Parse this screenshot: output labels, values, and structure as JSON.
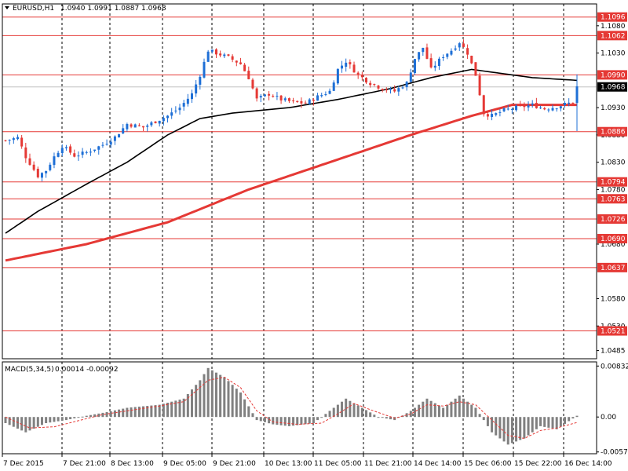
{
  "header": {
    "symbol": "EURUSD,H1",
    "ohlc": "1.0940 1.0991 1.0887 1.0968"
  },
  "macd_header": {
    "label": "MACD(5,34,5)",
    "values": "0.00014 -0.00092"
  },
  "colors": {
    "candle_up": "#1e6fd6",
    "candle_down": "#e53935",
    "level_line": "#e53935",
    "ma_fast": "#000000",
    "ma_slow": "#e53935",
    "histogram": "#808080",
    "signal": "#e53935",
    "current_price_bg": "#000000"
  },
  "chart_data": [
    {
      "type": "candlestick",
      "symbol": "EURUSD",
      "timeframe": "H1",
      "ylim": [
        1.047,
        1.112
      ],
      "y_ticks": [
        "1.1080",
        "1.1030",
        "1.0930",
        "1.0880",
        "1.0830",
        "1.0780",
        "1.0680",
        "1.0580",
        "1.0530",
        "1.0485"
      ],
      "x_ticks": [
        "7 Dec 2015",
        "7 Dec 21:00",
        "8 Dec 13:00",
        "9 Dec 05:00",
        "9 Dec 21:00",
        "10 Dec 13:00",
        "11 Dec 05:00",
        "11 Dec 21:00",
        "14 Dec 14:00",
        "15 Dec 06:00",
        "15 Dec 22:00",
        "16 Dec 14:00"
      ],
      "levels": [
        "1.1096",
        "1.1062",
        "1.0990",
        "1.0886",
        "1.0794",
        "1.0763",
        "1.0726",
        "1.0690",
        "1.0637",
        "1.0521"
      ],
      "current_price": "1.0968",
      "close_path": [
        [
          0,
          1.087
        ],
        [
          3,
          1.0875
        ],
        [
          5,
          1.084
        ],
        [
          8,
          1.0805
        ],
        [
          10,
          1.0815
        ],
        [
          12,
          1.084
        ],
        [
          14,
          1.086
        ],
        [
          17,
          1.0842
        ],
        [
          20,
          1.0848
        ],
        [
          24,
          1.0862
        ],
        [
          27,
          1.0876
        ],
        [
          30,
          1.09
        ],
        [
          34,
          1.0894
        ],
        [
          37,
          1.0905
        ],
        [
          40,
          1.0915
        ],
        [
          43,
          1.093
        ],
        [
          46,
          1.0955
        ],
        [
          48,
          1.099
        ],
        [
          50,
          1.1035
        ],
        [
          52,
          1.103
        ],
        [
          55,
          1.1022
        ],
        [
          58,
          1.101
        ],
        [
          60,
          1.0985
        ],
        [
          62,
          1.0945
        ],
        [
          65,
          1.0955
        ],
        [
          68,
          1.0945
        ],
        [
          71,
          1.094
        ],
        [
          74,
          1.0938
        ],
        [
          77,
          1.095
        ],
        [
          80,
          1.096
        ],
        [
          82,
          1.1
        ],
        [
          84,
          1.1015
        ],
        [
          87,
          1.099
        ],
        [
          90,
          1.0975
        ],
        [
          93,
          1.0965
        ],
        [
          96,
          1.096
        ],
        [
          99,
          1.0975
        ],
        [
          101,
          1.102
        ],
        [
          103,
          1.104
        ],
        [
          105,
          1.1
        ],
        [
          108,
          1.1025
        ],
        [
          110,
          1.1035
        ],
        [
          112,
          1.105
        ],
        [
          114,
          1.103
        ],
        [
          116,
          1.099
        ],
        [
          118,
          1.092
        ],
        [
          120,
          1.0915
        ],
        [
          123,
          1.0925
        ],
        [
          126,
          1.093
        ],
        [
          130,
          1.0935
        ],
        [
          133,
          1.0928
        ],
        [
          136,
          1.0932
        ],
        [
          140,
          1.094
        ],
        [
          141,
          1.0968
        ]
      ],
      "ma_fast_path": [
        [
          0,
          1.07
        ],
        [
          8,
          1.074
        ],
        [
          20,
          1.079
        ],
        [
          30,
          1.083
        ],
        [
          40,
          1.088
        ],
        [
          48,
          1.091
        ],
        [
          56,
          1.092
        ],
        [
          70,
          1.093
        ],
        [
          82,
          1.0945
        ],
        [
          95,
          1.0965
        ],
        [
          105,
          1.0985
        ],
        [
          115,
          1.1
        ],
        [
          120,
          1.0995
        ],
        [
          130,
          1.0985
        ],
        [
          141,
          1.098
        ]
      ],
      "ma_slow_path": [
        [
          0,
          1.065
        ],
        [
          20,
          1.068
        ],
        [
          40,
          1.072
        ],
        [
          60,
          1.078
        ],
        [
          80,
          1.083
        ],
        [
          100,
          1.088
        ],
        [
          115,
          1.0915
        ],
        [
          125,
          1.0935
        ],
        [
          141,
          1.0935
        ]
      ]
    },
    {
      "type": "bar",
      "indicator": "MACD(5,34,5)",
      "ylim": [
        -0.006,
        0.009
      ],
      "y_ticks": [
        "0.00832",
        "0.00",
        "-0.00571"
      ],
      "histogram_path": [
        [
          0,
          -0.001
        ],
        [
          5,
          -0.0025
        ],
        [
          10,
          -0.001
        ],
        [
          15,
          -0.0005
        ],
        [
          20,
          0.0002
        ],
        [
          25,
          0.0008
        ],
        [
          30,
          0.0015
        ],
        [
          38,
          0.002
        ],
        [
          44,
          0.003
        ],
        [
          48,
          0.006
        ],
        [
          50,
          0.008
        ],
        [
          54,
          0.0065
        ],
        [
          58,
          0.004
        ],
        [
          62,
          -0.0005
        ],
        [
          66,
          -0.0012
        ],
        [
          70,
          -0.0015
        ],
        [
          76,
          -0.001
        ],
        [
          80,
          0.001
        ],
        [
          84,
          0.003
        ],
        [
          88,
          0.0015
        ],
        [
          92,
          0.0
        ],
        [
          96,
          -0.0005
        ],
        [
          100,
          0.001
        ],
        [
          104,
          0.003
        ],
        [
          108,
          0.0015
        ],
        [
          112,
          0.0035
        ],
        [
          116,
          0.0015
        ],
        [
          120,
          -0.0025
        ],
        [
          124,
          -0.0045
        ],
        [
          128,
          -0.0035
        ],
        [
          132,
          -0.0015
        ],
        [
          136,
          -0.002
        ],
        [
          141,
          0.0002
        ]
      ],
      "signal_path": [
        [
          0,
          0.0
        ],
        [
          6,
          -0.0018
        ],
        [
          12,
          -0.0016
        ],
        [
          18,
          -0.0006
        ],
        [
          24,
          0.0004
        ],
        [
          30,
          0.001
        ],
        [
          38,
          0.0018
        ],
        [
          44,
          0.0025
        ],
        [
          50,
          0.006
        ],
        [
          54,
          0.0065
        ],
        [
          58,
          0.0048
        ],
        [
          62,
          0.001
        ],
        [
          66,
          -0.0008
        ],
        [
          72,
          -0.0012
        ],
        [
          78,
          -0.001
        ],
        [
          82,
          0.0005
        ],
        [
          86,
          0.0022
        ],
        [
          90,
          0.0012
        ],
        [
          96,
          -0.0002
        ],
        [
          100,
          0.0005
        ],
        [
          104,
          0.002
        ],
        [
          108,
          0.0018
        ],
        [
          112,
          0.0025
        ],
        [
          116,
          0.002
        ],
        [
          120,
          -0.0005
        ],
        [
          124,
          -0.003
        ],
        [
          128,
          -0.0035
        ],
        [
          132,
          -0.0022
        ],
        [
          136,
          -0.0018
        ],
        [
          141,
          -0.0009
        ]
      ]
    }
  ]
}
